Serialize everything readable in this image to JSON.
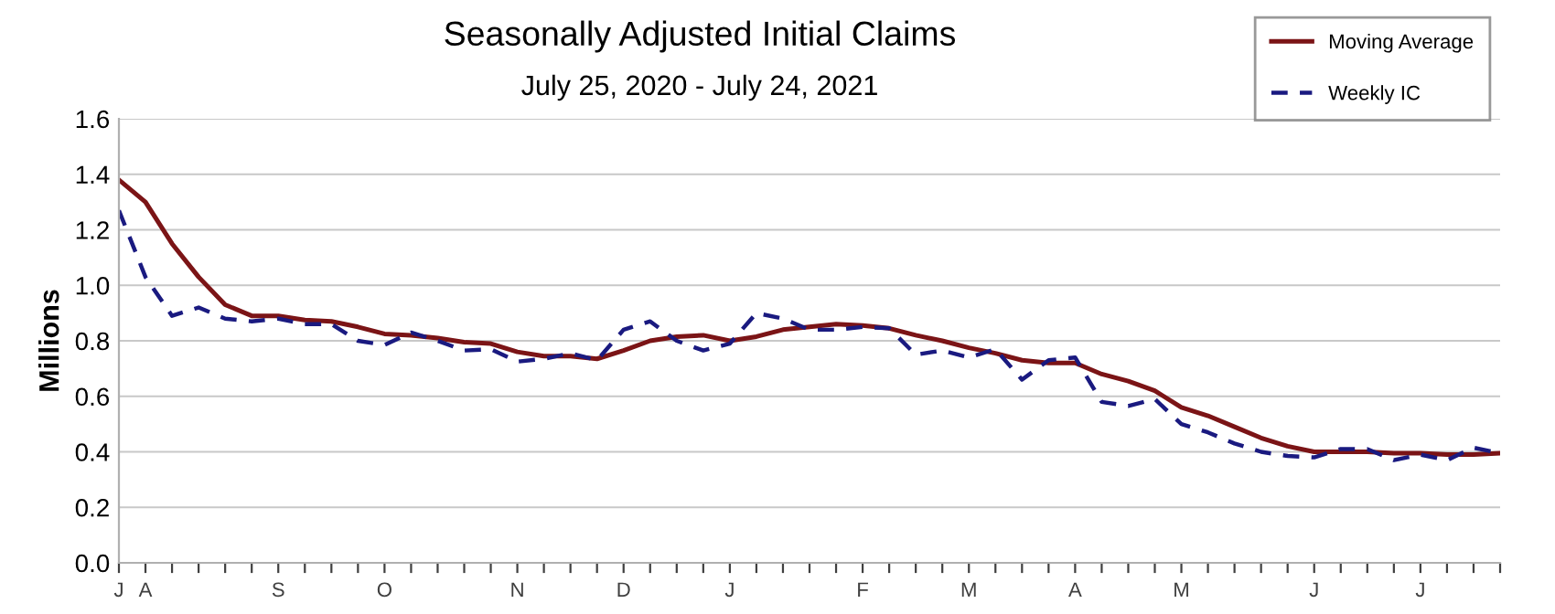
{
  "chart_data": {
    "type": "line",
    "title": "Seasonally Adjusted Initial Claims",
    "subtitle": "July 25, 2020 - July 24, 2021",
    "ylabel": "Millions",
    "categories": [
      "J",
      "A",
      null,
      null,
      null,
      null,
      "S",
      null,
      null,
      null,
      "O",
      null,
      null,
      null,
      null,
      "N",
      null,
      null,
      null,
      "D",
      null,
      null,
      null,
      "J",
      null,
      null,
      null,
      null,
      "F",
      null,
      null,
      null,
      "M",
      null,
      null,
      null,
      "A",
      null,
      null,
      null,
      "M",
      null,
      null,
      null,
      null,
      "J",
      null,
      null,
      null,
      "J",
      null,
      null,
      null
    ],
    "series": [
      {
        "name": "Moving Average",
        "color": "#7b1416",
        "line_style": "solid",
        "values": [
          1.38,
          1.3,
          1.15,
          1.03,
          0.93,
          0.89,
          0.89,
          0.875,
          0.87,
          0.85,
          0.825,
          0.82,
          0.81,
          0.795,
          0.79,
          0.76,
          0.745,
          0.745,
          0.735,
          0.765,
          0.8,
          0.815,
          0.82,
          0.8,
          0.815,
          0.84,
          0.85,
          0.86,
          0.855,
          0.845,
          0.82,
          0.8,
          0.775,
          0.755,
          0.73,
          0.72,
          0.72,
          0.68,
          0.655,
          0.62,
          0.56,
          0.53,
          0.49,
          0.45,
          0.42,
          0.4,
          0.4,
          0.4,
          0.395,
          0.395,
          0.39,
          0.39,
          0.395
        ]
      },
      {
        "name": "Weekly IC",
        "color": "#1a1a80",
        "line_style": "dashed",
        "values": [
          1.27,
          1.03,
          0.89,
          0.92,
          0.88,
          0.87,
          0.88,
          0.86,
          0.86,
          0.8,
          0.785,
          0.83,
          0.8,
          0.765,
          0.77,
          0.725,
          0.735,
          0.755,
          0.73,
          0.84,
          0.87,
          0.8,
          0.765,
          0.79,
          0.9,
          0.88,
          0.84,
          0.84,
          0.85,
          0.845,
          0.75,
          0.765,
          0.74,
          0.77,
          0.66,
          0.73,
          0.74,
          0.58,
          0.565,
          0.59,
          0.5,
          0.47,
          0.43,
          0.4,
          0.385,
          0.38,
          0.41,
          0.41,
          0.37,
          0.39,
          0.37,
          0.415,
          0.395
        ]
      }
    ],
    "ylim": [
      0,
      1.6
    ],
    "yticks": [
      {
        "value": 0,
        "label": "0.0"
      },
      {
        "value": 0.2,
        "label": "0.2"
      },
      {
        "value": 0.4,
        "label": "0.4"
      },
      {
        "value": 0.6,
        "label": "0.6"
      },
      {
        "value": 0.8,
        "label": "0.8"
      },
      {
        "value": 1.0,
        "label": "1.0"
      },
      {
        "value": 1.2,
        "label": "1.2"
      },
      {
        "value": 1.4,
        "label": "1.4"
      },
      {
        "value": 1.6,
        "label": "1.6"
      }
    ],
    "grid": "y",
    "legend": "top right",
    "marker": "none"
  }
}
